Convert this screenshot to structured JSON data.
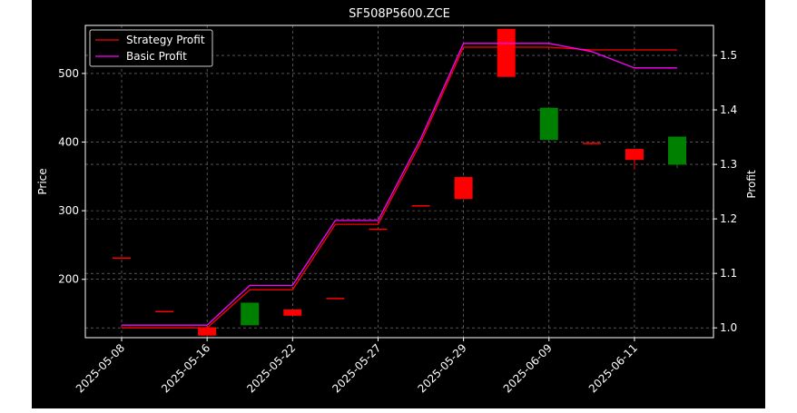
{
  "chart_data": {
    "type": "candlestick",
    "title": "SF508P5600.ZCE",
    "ylabel": "Price",
    "y2label": "Profit",
    "x_ticks": [
      "2025-05-08",
      "2025-05-16",
      "2025-05-22",
      "2025-05-27",
      "2025-05-29",
      "2025-06-09",
      "2025-06-11"
    ],
    "ylim": [
      115,
      570
    ],
    "y_ticks": [
      200,
      300,
      400,
      500
    ],
    "y2lim": [
      0.982,
      1.555
    ],
    "y2_ticks": [
      "1.0",
      "1.1",
      "1.2",
      "1.3",
      "1.4",
      "1.5"
    ],
    "y2_tick_values": [
      1.0,
      1.1,
      1.2,
      1.3,
      1.4,
      1.5
    ],
    "grid": true,
    "legend_position": "upper-left",
    "candles": [
      {
        "i": 0,
        "open": 232,
        "close": 231,
        "high": 232,
        "low": 231
      },
      {
        "i": 1,
        "open": 154,
        "close": 153,
        "high": 154,
        "low": 153
      },
      {
        "i": 2,
        "open": 130,
        "close": 118,
        "high": 130,
        "low": 118
      },
      {
        "i": 3,
        "open": 133,
        "close": 166,
        "high": 166,
        "low": 133
      },
      {
        "i": 4,
        "open": 156,
        "close": 147,
        "high": 156,
        "low": 147
      },
      {
        "i": 5,
        "open": 173,
        "close": 172,
        "high": 173,
        "low": 172
      },
      {
        "i": 6,
        "open": 274,
        "close": 273,
        "high": 274,
        "low": 273
      },
      {
        "i": 7,
        "open": 308,
        "close": 307,
        "high": 308,
        "low": 307
      },
      {
        "i": 8,
        "open": 349,
        "close": 317,
        "high": 349,
        "low": 317
      },
      {
        "i": 9,
        "open": 565,
        "close": 495,
        "high": 565,
        "low": 495
      },
      {
        "i": 10,
        "open": 403,
        "close": 450,
        "high": 450,
        "low": 403
      },
      {
        "i": 11,
        "open": 399,
        "close": 398,
        "high": 399,
        "low": 396
      },
      {
        "i": 12,
        "open": 390,
        "close": 374,
        "high": 390,
        "low": 360
      },
      {
        "i": 13,
        "open": 367,
        "close": 408,
        "high": 408,
        "low": 362
      }
    ],
    "series": [
      {
        "name": "Strategy Profit",
        "color": "#ff0000",
        "x": [
          0,
          2,
          3,
          4,
          5,
          6,
          7,
          8,
          9,
          10,
          11,
          12,
          13
        ],
        "values": [
          1.0,
          1.0,
          1.07,
          1.07,
          1.19,
          1.19,
          1.34,
          1.515,
          1.515,
          1.515,
          1.51,
          1.51,
          1.51
        ]
      },
      {
        "name": "Basic Profit",
        "color": "#ff00ff",
        "x": [
          0,
          2,
          3,
          4,
          5,
          6,
          7,
          8,
          9,
          10,
          11,
          12,
          13
        ],
        "values": [
          1.005,
          1.005,
          1.078,
          1.078,
          1.197,
          1.197,
          1.347,
          1.522,
          1.522,
          1.522,
          1.507,
          1.477,
          1.477
        ]
      }
    ],
    "up_color": "#008000",
    "down_color": "#ff0000"
  }
}
